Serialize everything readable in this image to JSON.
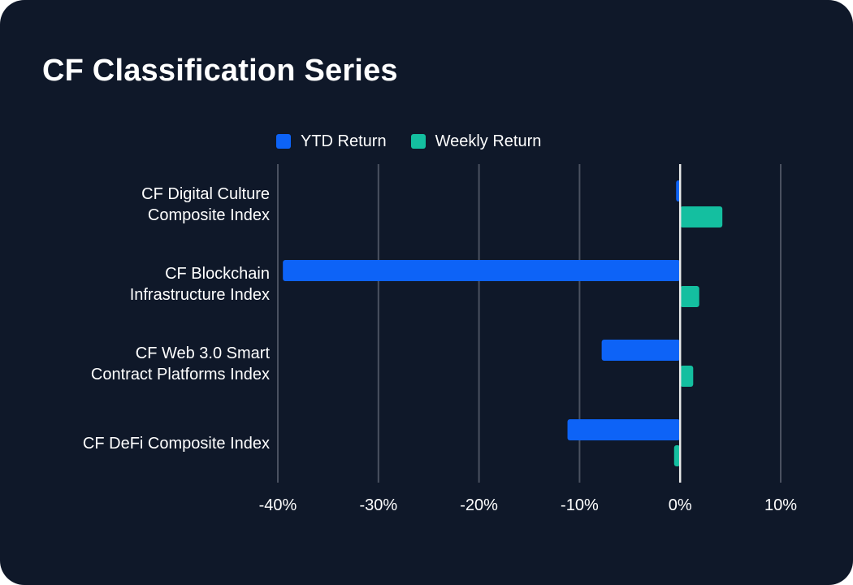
{
  "title": "CF Classification Series",
  "colors": {
    "background": "#0f1829",
    "ytd": "#0d63f7",
    "weekly": "#14bfa0",
    "grid": "#4a5160",
    "zero_line": "#e8e8e8",
    "text": "#ffffff"
  },
  "chart_data": {
    "type": "bar",
    "orientation": "horizontal",
    "title": "CF Classification Series",
    "categories": [
      [
        "CF Digital Culture",
        "Composite Index"
      ],
      [
        "CF Blockchain",
        "Infrastructure Index"
      ],
      [
        "CF Web 3.0 Smart",
        "Contract Platforms Index"
      ],
      [
        "CF DeFi Composite Index"
      ]
    ],
    "series": [
      {
        "name": "YTD Return",
        "color": "#0d63f7",
        "values": [
          -0.4,
          -39.5,
          -7.8,
          -11.2
        ]
      },
      {
        "name": "Weekly Return",
        "color": "#14bfa0",
        "values": [
          4.2,
          1.9,
          1.3,
          -0.6
        ]
      }
    ],
    "xlim": [
      -40,
      10
    ],
    "xticks": [
      -40,
      -30,
      -20,
      -10,
      0,
      10
    ],
    "xtick_labels": [
      "-40%",
      "-30%",
      "-20%",
      "-10%",
      "0%",
      "10%"
    ],
    "xlabel": "",
    "ylabel": "",
    "grid": "vertical",
    "legend": "top-center"
  }
}
